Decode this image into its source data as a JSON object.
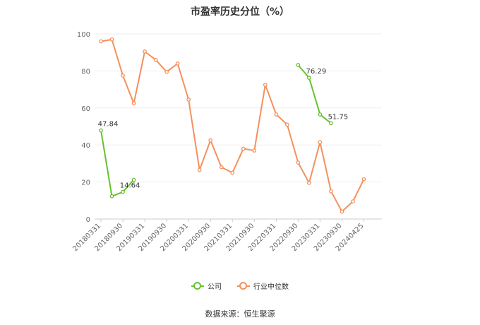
{
  "chart_data": {
    "type": "line",
    "title": "市盈率历史分位（%）",
    "ylim": [
      0,
      100
    ],
    "yticks": [
      0,
      20,
      40,
      60,
      80,
      100
    ],
    "grid": true,
    "legend_position": "bottom",
    "xtick_labels": [
      "20180331",
      "20180930",
      "20190331",
      "20190930",
      "20200331",
      "20200930",
      "20210331",
      "20210930",
      "20220331",
      "20220930",
      "20230331",
      "20230930",
      "20240425"
    ],
    "x_count": 26,
    "series": [
      {
        "name": "公司",
        "color": "#66c22d",
        "values": [
          47.84,
          12.3,
          14.64,
          21.2,
          null,
          null,
          null,
          null,
          null,
          null,
          null,
          null,
          null,
          null,
          null,
          null,
          null,
          null,
          83.2,
          76.29,
          56.5,
          51.75,
          null,
          null,
          null,
          null
        ],
        "labels": [
          {
            "index": 0,
            "text": "47.84"
          },
          {
            "index": 2,
            "text": "14.64"
          },
          {
            "index": 19,
            "text": "76.29"
          },
          {
            "index": 21,
            "text": "51.75"
          }
        ]
      },
      {
        "name": "行业中位数",
        "color": "#f5905d",
        "values": [
          96,
          97,
          77.5,
          62.5,
          90.5,
          86,
          79.5,
          84,
          64.5,
          26.5,
          42.5,
          28,
          25,
          38,
          37,
          72.5,
          56.5,
          51,
          30.5,
          19.5,
          41.5,
          15,
          4,
          9.5,
          21.5,
          null
        ]
      }
    ]
  },
  "source": "数据来源：恒生聚源"
}
